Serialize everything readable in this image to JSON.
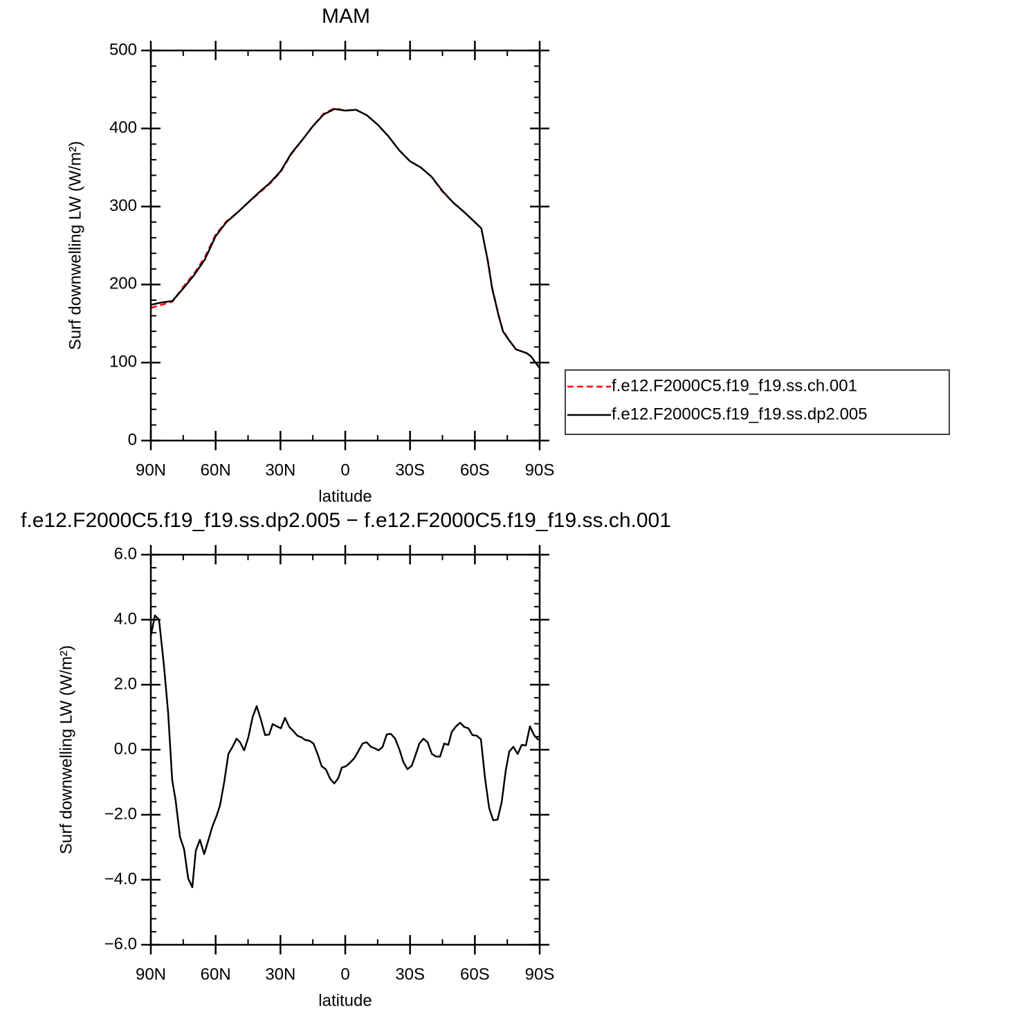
{
  "chart_data": [
    {
      "type": "line",
      "title": "MAM",
      "xlabel": "latitude",
      "ylabel": "Surf downwelling LW (W/m²)",
      "x": [
        90,
        85,
        80,
        75,
        70,
        65,
        60,
        55,
        50,
        45,
        40,
        35,
        30,
        25,
        20,
        15,
        10,
        5,
        0,
        -5,
        -10,
        -15,
        -20,
        -25,
        -30,
        -35,
        -40,
        -45,
        -50,
        -55,
        -60,
        -63,
        -66,
        -68,
        -71,
        -73,
        -76,
        -79,
        -84,
        -86,
        -88,
        -90
      ],
      "series": [
        {
          "name": "f.e12.F2000C5.f19_f19.ss.ch.001",
          "color": "#ff0000",
          "dash": "dashed",
          "values": [
            170,
            174,
            178,
            197,
            214,
            235,
            264,
            281,
            292,
            305,
            317,
            329,
            344,
            367,
            385,
            403,
            419,
            426,
            423,
            424,
            417,
            405,
            390,
            372,
            358,
            350,
            338,
            319,
            305,
            293,
            280,
            272,
            231,
            196,
            161,
            141,
            128,
            117,
            112,
            108,
            100,
            93
          ]
        },
        {
          "name": "f.e12.F2000C5.f19_f19.ss.dp2.005",
          "color": "#000000",
          "dash": "solid",
          "values": [
            174,
            177,
            179,
            195,
            212,
            232,
            262,
            280,
            292,
            305,
            318,
            330,
            345,
            368,
            385,
            403,
            418,
            425,
            423,
            424,
            417,
            405,
            390,
            372,
            358,
            350,
            338,
            320,
            305,
            293,
            280,
            272,
            230,
            195,
            160,
            140,
            128,
            117,
            112,
            108,
            100,
            93
          ]
        }
      ],
      "xlim": [
        90,
        -90
      ],
      "xticks": [
        {
          "value": 90,
          "label": "90N"
        },
        {
          "value": 60,
          "label": "60N"
        },
        {
          "value": 30,
          "label": "30N"
        },
        0,
        {
          "value": -30,
          "label": "30S"
        },
        {
          "value": -60,
          "label": "60S"
        },
        {
          "value": -90,
          "label": "90S"
        }
      ],
      "xminor": 1,
      "ylim": [
        0,
        500
      ],
      "yticks": [
        0,
        100,
        200,
        300,
        400,
        500
      ],
      "yminor": 4,
      "legend": "right"
    },
    {
      "type": "line",
      "title": "f.e12.F2000C5.f19_f19.ss.dp2.005 − f.e12.F2000C5.f19_f19.ss.ch.001",
      "xlabel": "latitude",
      "ylabel": "Surf downwelling LW (W/m²)",
      "x": [
        90,
        88.1,
        86.2,
        84.0,
        82.0,
        80.1,
        78.5,
        76.5,
        74.6,
        72.7,
        70.8,
        69.2,
        67.3,
        65.3,
        63.4,
        61.5,
        59.6,
        58.0,
        56.0,
        54.1,
        52.2,
        50.3,
        48.7,
        46.8,
        44.8,
        42.9,
        41.0,
        39.1,
        37.1,
        35.2,
        33.6,
        31.7,
        29.8,
        27.9,
        25.9,
        24.0,
        22.1,
        20.2,
        18.6,
        16.6,
        14.7,
        12.8,
        10.9,
        9.0,
        7.0,
        5.1,
        3.2,
        1.6,
        -0.3,
        -2.2,
        -4.2,
        -6.1,
        -8.0,
        -9.9,
        -11.9,
        -13.8,
        -15.4,
        -17.3,
        -19.2,
        -21.1,
        -23.1,
        -25.0,
        -26.9,
        -28.8,
        -30.8,
        -32.7,
        -34.3,
        -36.2,
        -38.1,
        -40.1,
        -42.0,
        -43.9,
        -45.8,
        -47.7,
        -49.3,
        -51.3,
        -53.2,
        -55.1,
        -57.0,
        -58.9,
        -60.9,
        -62.8,
        -64.7,
        -66.6,
        -68.5,
        -70.5,
        -72.4,
        -74.3,
        -75.9,
        -77.8,
        -79.8,
        -81.7,
        -83.6,
        -85.5,
        -87.4,
        -89.4
      ],
      "values": [
        3.5,
        4.13,
        4.0,
        2.64,
        1.15,
        -0.94,
        -1.57,
        -2.68,
        -3.06,
        -3.96,
        -4.23,
        -3.11,
        -2.77,
        -3.21,
        -2.79,
        -2.36,
        -2.04,
        -1.72,
        -0.98,
        -0.13,
        0.09,
        0.34,
        0.23,
        -0.02,
        0.4,
        1.0,
        1.34,
        0.94,
        0.45,
        0.47,
        0.79,
        0.72,
        0.66,
        0.98,
        0.7,
        0.57,
        0.43,
        0.38,
        0.3,
        0.28,
        0.19,
        -0.13,
        -0.51,
        -0.6,
        -0.89,
        -1.04,
        -0.87,
        -0.55,
        -0.51,
        -0.4,
        -0.26,
        -0.04,
        0.19,
        0.23,
        0.09,
        0.04,
        -0.02,
        0.09,
        0.47,
        0.49,
        0.34,
        0.02,
        -0.38,
        -0.6,
        -0.49,
        -0.13,
        0.19,
        0.34,
        0.23,
        -0.13,
        -0.21,
        -0.21,
        0.19,
        0.15,
        0.55,
        0.72,
        0.83,
        0.7,
        0.66,
        0.45,
        0.43,
        0.32,
        -0.87,
        -1.79,
        -2.17,
        -2.15,
        -1.62,
        -0.64,
        -0.06,
        0.09,
        -0.13,
        0.15,
        0.13,
        0.72,
        0.45,
        0.3
      ],
      "color": "#000000",
      "xlim": [
        90,
        -90
      ],
      "xticks": [
        {
          "value": 90,
          "label": "90N"
        },
        {
          "value": 60,
          "label": "60N"
        },
        {
          "value": 30,
          "label": "30N"
        },
        0,
        {
          "value": -30,
          "label": "30S"
        },
        {
          "value": -60,
          "label": "60S"
        },
        {
          "value": -90,
          "label": "90S"
        }
      ],
      "xminor": 1,
      "ylim": [
        -6,
        6
      ],
      "yticks": [
        {
          "value": -6,
          "label": "−6.0"
        },
        {
          "value": -4,
          "label": "−4.0"
        },
        {
          "value": -2,
          "label": "−2.0"
        },
        {
          "value": 0,
          "label": "0.0"
        },
        {
          "value": 2,
          "label": "2.0"
        },
        {
          "value": 4,
          "label": "4.0"
        },
        {
          "value": 6,
          "label": "6.0"
        }
      ],
      "yminor": 4
    }
  ]
}
